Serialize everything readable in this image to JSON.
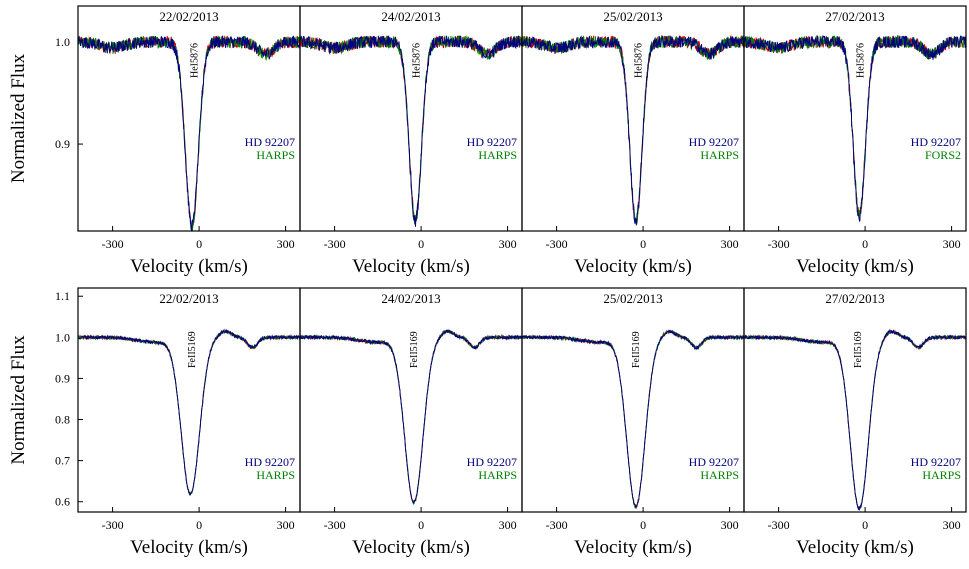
{
  "chart_data": {
    "type": "line",
    "ylabel": "Normalized Flux",
    "xlabel": "Velocity (km/s)",
    "xlim": [
      -420,
      350
    ],
    "xticks": [
      -300,
      0,
      300
    ],
    "xtick_labels": [
      "-300",
      "0",
      "300"
    ],
    "series_colors": [
      "#cc0000",
      "#008000",
      "#000080"
    ],
    "rows": [
      {
        "line_label": "HeI5876",
        "ylim": [
          0.815,
          1.035
        ],
        "yticks": [
          0.9,
          1.0
        ],
        "ytick_labels": [
          "0.9",
          "1.0"
        ],
        "panels": [
          {
            "date": "22/02/2013",
            "star": "HD 92207",
            "instrument": "HARPS",
            "center": -25,
            "minimum": 0.82,
            "width": 32
          },
          {
            "date": "24/02/2013",
            "star": "HD 92207",
            "instrument": "HARPS",
            "center": -20,
            "minimum": 0.825,
            "width": 30
          },
          {
            "date": "25/02/2013",
            "star": "HD 92207",
            "instrument": "HARPS",
            "center": -25,
            "minimum": 0.825,
            "width": 30
          },
          {
            "date": "27/02/2013",
            "star": "HD 92207",
            "instrument": "FORS2",
            "center": -20,
            "minimum": 0.83,
            "width": 30
          }
        ]
      },
      {
        "line_label": "FeII5169",
        "ylim": [
          0.575,
          1.12
        ],
        "yticks": [
          0.6,
          0.7,
          0.8,
          0.9,
          1.0,
          1.1
        ],
        "ytick_labels": [
          "0.6",
          "0.7",
          "0.8",
          "0.9",
          "1.0",
          "1.1"
        ],
        "panels": [
          {
            "date": "22/02/2013",
            "star": "HD 92207",
            "instrument": "HARPS",
            "center": -30,
            "minimum": 0.62,
            "width": 45
          },
          {
            "date": "24/02/2013",
            "star": "HD 92207",
            "instrument": "HARPS",
            "center": -25,
            "minimum": 0.6,
            "width": 45
          },
          {
            "date": "25/02/2013",
            "star": "HD 92207",
            "instrument": "HARPS",
            "center": -25,
            "minimum": 0.59,
            "width": 45
          },
          {
            "date": "27/02/2013",
            "star": "HD 92207",
            "instrument": "HARPS",
            "center": -20,
            "minimum": 0.585,
            "width": 45
          }
        ]
      }
    ]
  }
}
